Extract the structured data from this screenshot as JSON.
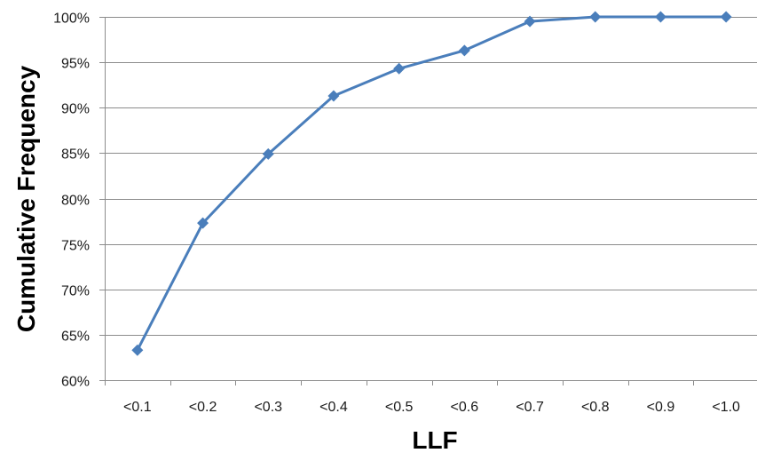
{
  "chart_data": {
    "type": "line",
    "title": "",
    "xlabel": "LLF",
    "ylabel": "Cumulative Frequency",
    "categories": [
      "<0.1",
      "<0.2",
      "<0.3",
      "<0.4",
      "<0.5",
      "<0.6",
      "<0.7",
      "<0.8",
      "<0.9",
      "<1.0"
    ],
    "series": [
      {
        "values": [
          63.3,
          77.3,
          84.9,
          91.3,
          94.3,
          96.3,
          99.5,
          100,
          100,
          100
        ]
      }
    ],
    "ylim": [
      60,
      100
    ],
    "yticks": [
      60,
      65,
      70,
      75,
      80,
      85,
      90,
      95,
      100
    ],
    "ytick_labels": [
      "60%",
      "65%",
      "70%",
      "75%",
      "80%",
      "85%",
      "90%",
      "95%",
      "100%"
    ],
    "grid": "horizontal",
    "legend": "none",
    "colors": {
      "series": "#4A7EBB",
      "gridline": "#8C8C8C",
      "axis": "#8C8C8C"
    },
    "marker": "diamond"
  }
}
